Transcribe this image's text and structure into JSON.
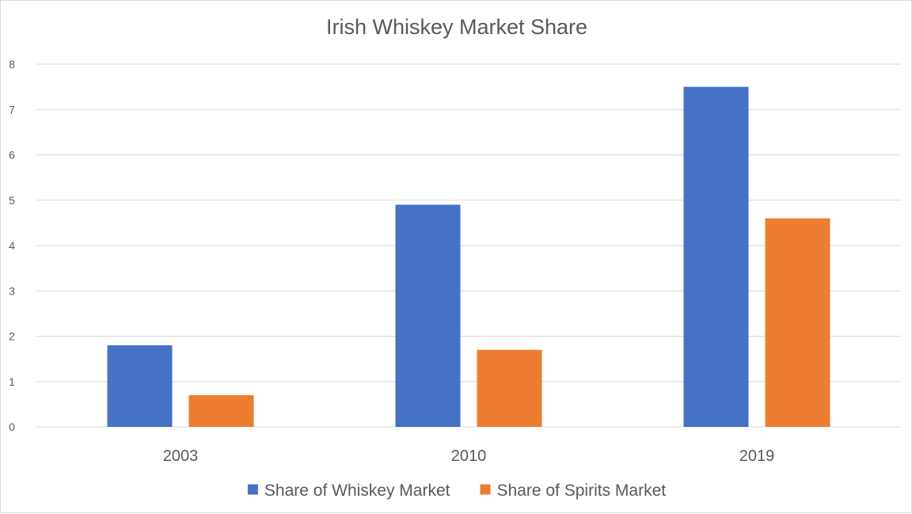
{
  "chart_data": {
    "type": "bar",
    "title": "Irish Whiskey Market Share",
    "xlabel": "",
    "ylabel": "",
    "categories": [
      "2003",
      "2010",
      "2019"
    ],
    "series": [
      {
        "name": "Share of Whiskey Market",
        "values": [
          1.8,
          4.9,
          7.5
        ],
        "color": "#4472C4"
      },
      {
        "name": "Share of Spirits Market",
        "values": [
          0.7,
          1.7,
          4.6
        ],
        "color": "#ED7D31"
      }
    ],
    "ylim": [
      0,
      8
    ],
    "yticks": [
      0,
      1,
      2,
      3,
      4,
      5,
      6,
      7,
      8
    ],
    "grid": true,
    "gridline_color": "#d9d9d9",
    "legend_position": "bottom"
  }
}
